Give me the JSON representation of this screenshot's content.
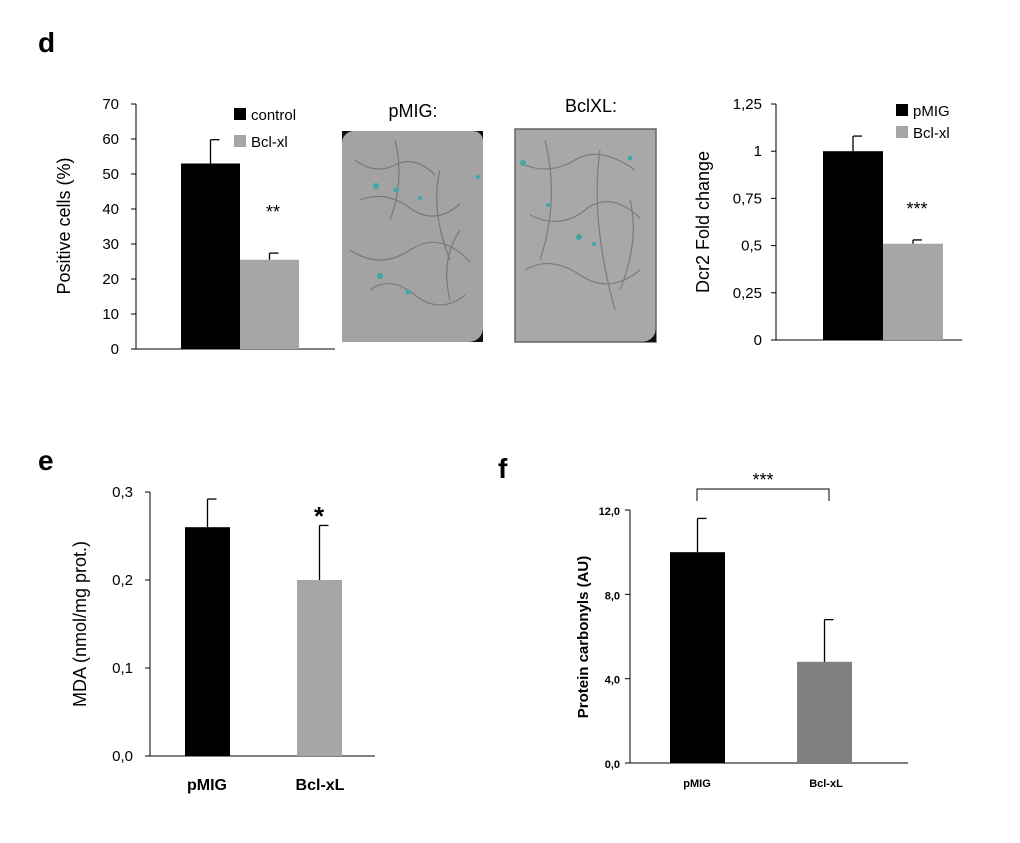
{
  "panel_labels": {
    "d": "d",
    "e": "e",
    "f": "f"
  },
  "images": {
    "left_title": "pMIG:",
    "right_title": "BclXL:"
  },
  "chart_data": [
    {
      "id": "d_left",
      "type": "bar",
      "ylabel": "Positive cells (%)",
      "ylim": [
        0,
        70
      ],
      "yticks": [
        "0",
        "10",
        "20",
        "30",
        "40",
        "50",
        "60",
        "70"
      ],
      "yvalues": [
        0,
        10,
        20,
        30,
        40,
        50,
        60,
        70
      ],
      "legend": [
        "control",
        "Bcl-xl"
      ],
      "legend_position": "top-right",
      "bars": [
        {
          "label": "control",
          "value": 53,
          "error": 6.8,
          "color": "#000000"
        },
        {
          "label": "Bcl-xl",
          "value": 25.5,
          "error": 1.9,
          "color": "#a6a6a6"
        }
      ],
      "significance": "**"
    },
    {
      "id": "d_right",
      "type": "bar",
      "ylabel": "Dcr2 Fold change",
      "ylim": [
        0,
        1.25
      ],
      "yticks": [
        "0",
        "0,25",
        "0,5",
        "0,75",
        "1",
        "1,25"
      ],
      "yvalues": [
        0,
        0.25,
        0.5,
        0.75,
        1,
        1.25
      ],
      "legend": [
        "pMIG",
        "Bcl-xl"
      ],
      "legend_position": "top-right",
      "bars": [
        {
          "label": "pMIG",
          "value": 1.0,
          "error": 0.08,
          "color": "#000000"
        },
        {
          "label": "Bcl-xl",
          "value": 0.51,
          "error": 0.02,
          "color": "#a6a6a6"
        }
      ],
      "significance": "***"
    },
    {
      "id": "e",
      "type": "bar",
      "ylabel": "MDA (nmol/mg prot.)",
      "ylim": [
        0,
        0.3
      ],
      "yticks": [
        "0,0",
        "0,1",
        "0,2",
        "0,3"
      ],
      "yvalues": [
        0,
        0.1,
        0.2,
        0.3
      ],
      "categories": [
        "pMIG",
        "Bcl-xL"
      ],
      "bars": [
        {
          "label": "pMIG",
          "value": 0.26,
          "error": 0.032,
          "color": "#000000"
        },
        {
          "label": "Bcl-xL",
          "value": 0.2,
          "error": 0.062,
          "color": "#a6a6a6"
        }
      ],
      "significance": "*"
    },
    {
      "id": "f",
      "type": "bar",
      "ylabel": "Protein carbonyls (AU)",
      "ylim": [
        0,
        12
      ],
      "yticks": [
        "0,0",
        "4,0",
        "8,0",
        "12,0"
      ],
      "yvalues": [
        0,
        4,
        8,
        12
      ],
      "categories": [
        "pMIG",
        "Bcl-xL"
      ],
      "bars": [
        {
          "label": "pMIG",
          "value": 10.0,
          "error": 1.6,
          "color": "#000000"
        },
        {
          "label": "Bcl-xL",
          "value": 4.8,
          "error": 2.0,
          "color": "#808080"
        }
      ],
      "significance": "***"
    }
  ]
}
